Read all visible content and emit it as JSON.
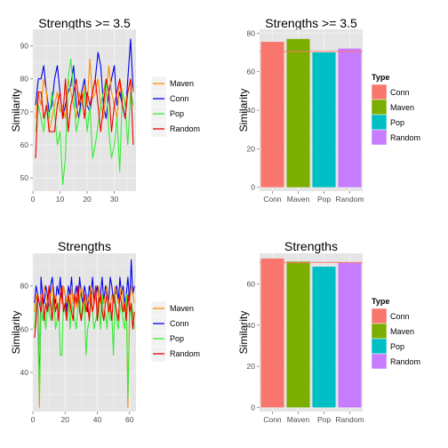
{
  "chart_data": [
    {
      "type": "line",
      "title": "Strengths >= 3.5",
      "ylabel": "Similarity",
      "xlabel": "",
      "xlim": [
        0,
        38
      ],
      "ylim": [
        46,
        95
      ],
      "xticks": [
        0,
        10,
        20,
        30
      ],
      "yticks": [
        50,
        60,
        70,
        80,
        90
      ],
      "grid": true,
      "legend": "right",
      "legend_order": [
        "Maven",
        "Conn",
        "Pop",
        "Random"
      ],
      "series": [
        {
          "name": "Conn",
          "color": "#0000ee",
          "x": [
            1,
            2,
            3,
            4,
            5,
            6,
            7,
            8,
            9,
            10,
            11,
            12,
            13,
            14,
            15,
            16,
            17,
            18,
            19,
            20,
            21,
            22,
            23,
            24,
            25,
            26,
            27,
            28,
            29,
            30,
            31,
            32,
            33,
            34,
            35,
            36,
            37
          ],
          "values": [
            72,
            80,
            80,
            84,
            76,
            70,
            72,
            80,
            84,
            76,
            68,
            72,
            76,
            78,
            84,
            72,
            68,
            76,
            80,
            72,
            70,
            76,
            80,
            88,
            84,
            72,
            68,
            76,
            80,
            84,
            72,
            76,
            72,
            68,
            80,
            92,
            76
          ]
        },
        {
          "name": "Maven",
          "color": "#ff8c00",
          "x": [
            1,
            2,
            3,
            4,
            5,
            6,
            7,
            8,
            9,
            10,
            11,
            12,
            13,
            14,
            15,
            16,
            17,
            18,
            19,
            20,
            21,
            22,
            23,
            24,
            25,
            26,
            27,
            28,
            29,
            30,
            31,
            32,
            33,
            34,
            35,
            36,
            37
          ],
          "values": [
            68,
            76,
            72,
            80,
            76,
            64,
            68,
            72,
            76,
            70,
            72,
            68,
            80,
            76,
            72,
            68,
            76,
            72,
            78,
            72,
            86,
            74,
            76,
            80,
            72,
            68,
            76,
            84,
            76,
            72,
            68,
            80,
            76,
            72,
            76,
            80,
            76
          ]
        },
        {
          "name": "Pop",
          "color": "#33ee33",
          "x": [
            1,
            2,
            3,
            4,
            5,
            6,
            7,
            8,
            9,
            10,
            11,
            12,
            13,
            14,
            15,
            16,
            17,
            18,
            19,
            20,
            21,
            22,
            23,
            24,
            25,
            26,
            27,
            28,
            29,
            30,
            31,
            32,
            33,
            34,
            35,
            36,
            37
          ],
          "values": [
            64,
            72,
            68,
            64,
            72,
            68,
            76,
            70,
            60,
            64,
            48,
            56,
            80,
            86,
            76,
            64,
            68,
            72,
            76,
            64,
            72,
            56,
            60,
            66,
            72,
            76,
            80,
            64,
            56,
            60,
            68,
            52,
            76,
            72,
            60,
            76,
            72
          ]
        },
        {
          "name": "Random",
          "color": "#ee0000",
          "x": [
            1,
            2,
            3,
            4,
            5,
            6,
            7,
            8,
            9,
            10,
            11,
            12,
            13,
            14,
            15,
            16,
            17,
            18,
            19,
            20,
            21,
            22,
            23,
            24,
            25,
            26,
            27,
            28,
            29,
            30,
            31,
            32,
            33,
            34,
            35,
            36,
            37
          ],
          "values": [
            56,
            76,
            76,
            68,
            72,
            64,
            64,
            64,
            72,
            76,
            68,
            80,
            64,
            72,
            76,
            80,
            72,
            76,
            68,
            76,
            72,
            76,
            80,
            72,
            64,
            72,
            80,
            76,
            64,
            72,
            76,
            80,
            72,
            68,
            76,
            80,
            60
          ]
        }
      ]
    },
    {
      "type": "bar",
      "title": "Strengths >= 3.5",
      "ylabel": "Similarity",
      "xlabel": "",
      "categories": [
        "Conn",
        "Maven",
        "Pop",
        "Random"
      ],
      "values": [
        75.5,
        77,
        70,
        72
      ],
      "colors": [
        "#f8766d",
        "#7cae00",
        "#00bfc4",
        "#c77cff"
      ],
      "reference_line": 70.5,
      "reference_color": "#f8766d",
      "ylim": [
        -2,
        82
      ],
      "yticks": [
        0,
        20,
        40,
        60,
        80
      ],
      "grid": true,
      "legend": "right",
      "legend_title": "Type"
    },
    {
      "type": "line",
      "title": "Strengths",
      "ylabel": "Similarity",
      "xlabel": "",
      "xlim": [
        0,
        64
      ],
      "ylim": [
        22,
        95
      ],
      "xticks": [
        0,
        20,
        40,
        60
      ],
      "yticks": [
        40,
        60,
        80
      ],
      "grid": true,
      "legend": "right",
      "legend_order": [
        "Maven",
        "Conn",
        "Pop",
        "Random"
      ],
      "series": [
        {
          "name": "Conn",
          "color": "#0000ee",
          "x": [
            1,
            2,
            3,
            4,
            5,
            6,
            7,
            8,
            9,
            10,
            11,
            12,
            13,
            14,
            15,
            16,
            17,
            18,
            19,
            20,
            21,
            22,
            23,
            24,
            25,
            26,
            27,
            28,
            29,
            30,
            31,
            32,
            33,
            34,
            35,
            36,
            37,
            38,
            39,
            40,
            41,
            42,
            43,
            44,
            45,
            46,
            47,
            48,
            49,
            50,
            51,
            52,
            53,
            54,
            55,
            56,
            57,
            58,
            59,
            60,
            61,
            62,
            63
          ],
          "values": [
            72,
            80,
            76,
            30,
            84,
            76,
            72,
            80,
            76,
            68,
            80,
            84,
            76,
            72,
            80,
            76,
            84,
            72,
            80,
            76,
            68,
            80,
            76,
            84,
            72,
            76,
            80,
            72,
            84,
            76,
            72,
            80,
            76,
            68,
            80,
            76,
            84,
            72,
            76,
            80,
            72,
            76,
            84,
            72,
            80,
            76,
            72,
            84,
            80,
            72,
            76,
            80,
            72,
            84,
            76,
            80,
            72,
            76,
            84,
            72,
            92,
            76,
            80
          ]
        },
        {
          "name": "Maven",
          "color": "#ff8c00",
          "x": [
            1,
            2,
            3,
            4,
            5,
            6,
            7,
            8,
            9,
            10,
            11,
            12,
            13,
            14,
            15,
            16,
            17,
            18,
            19,
            20,
            21,
            22,
            23,
            24,
            25,
            26,
            27,
            28,
            29,
            30,
            31,
            32,
            33,
            34,
            35,
            36,
            37,
            38,
            39,
            40,
            41,
            42,
            43,
            44,
            45,
            46,
            47,
            48,
            49,
            50,
            51,
            52,
            53,
            54,
            55,
            56,
            57,
            58,
            59,
            60,
            61,
            62,
            63
          ],
          "values": [
            68,
            76,
            72,
            24,
            76,
            72,
            80,
            76,
            72,
            68,
            76,
            80,
            72,
            76,
            72,
            68,
            76,
            72,
            80,
            76,
            72,
            76,
            68,
            80,
            72,
            76,
            70,
            76,
            72,
            80,
            76,
            72,
            68,
            76,
            72,
            80,
            76,
            72,
            76,
            68,
            80,
            72,
            76,
            72,
            76,
            80,
            72,
            68,
            76,
            72,
            80,
            76,
            72,
            76,
            80,
            72,
            68,
            76,
            24,
            72,
            80,
            76,
            72
          ]
        },
        {
          "name": "Pop",
          "color": "#33ee33",
          "x": [
            1,
            2,
            3,
            4,
            5,
            6,
            7,
            8,
            9,
            10,
            11,
            12,
            13,
            14,
            15,
            16,
            17,
            18,
            19,
            20,
            21,
            22,
            23,
            24,
            25,
            26,
            27,
            28,
            29,
            30,
            31,
            32,
            33,
            34,
            35,
            36,
            37,
            38,
            39,
            40,
            41,
            42,
            43,
            44,
            45,
            46,
            47,
            48,
            49,
            50,
            51,
            52,
            53,
            54,
            55,
            56,
            57,
            58,
            59,
            60,
            61,
            62,
            63
          ],
          "values": [
            60,
            72,
            68,
            28,
            72,
            64,
            68,
            60,
            72,
            68,
            64,
            72,
            76,
            60,
            64,
            72,
            48,
            48,
            72,
            68,
            64,
            76,
            60,
            72,
            68,
            64,
            60,
            72,
            76,
            64,
            68,
            72,
            48,
            60,
            64,
            72,
            68,
            60,
            64,
            68,
            72,
            60,
            76,
            64,
            68,
            60,
            72,
            64,
            68,
            48,
            76,
            64,
            60,
            68,
            72,
            64,
            60,
            76,
            28,
            64,
            72,
            68,
            60
          ]
        },
        {
          "name": "Random",
          "color": "#ee0000",
          "x": [
            1,
            2,
            3,
            4,
            5,
            6,
            7,
            8,
            9,
            10,
            11,
            12,
            13,
            14,
            15,
            16,
            17,
            18,
            19,
            20,
            21,
            22,
            23,
            24,
            25,
            26,
            27,
            28,
            29,
            30,
            31,
            32,
            33,
            34,
            35,
            36,
            37,
            38,
            39,
            40,
            41,
            42,
            43,
            44,
            45,
            46,
            47,
            48,
            49,
            50,
            51,
            52,
            53,
            54,
            55,
            56,
            57,
            58,
            59,
            60,
            61,
            62,
            63
          ],
          "values": [
            56,
            64,
            76,
            72,
            68,
            76,
            64,
            72,
            68,
            80,
            72,
            64,
            76,
            68,
            72,
            64,
            76,
            80,
            68,
            72,
            64,
            76,
            72,
            68,
            64,
            76,
            72,
            80,
            68,
            64,
            72,
            76,
            68,
            72,
            64,
            76,
            68,
            72,
            80,
            64,
            72,
            76,
            68,
            64,
            72,
            76,
            68,
            72,
            64,
            76,
            72,
            68,
            64,
            76,
            72,
            68,
            72,
            64,
            76,
            68,
            72,
            60,
            68
          ]
        }
      ]
    },
    {
      "type": "bar",
      "title": "Strengths",
      "ylabel": "Similarity",
      "xlabel": "",
      "categories": [
        "Conn",
        "Maven",
        "Pop",
        "Random"
      ],
      "values": [
        72.5,
        71,
        68.5,
        70.5
      ],
      "colors": [
        "#f8766d",
        "#7cae00",
        "#00bfc4",
        "#c77cff"
      ],
      "reference_line": 70.5,
      "reference_color": "#f8766d",
      "ylim": [
        -2,
        75
      ],
      "yticks": [
        0,
        20,
        40,
        60
      ],
      "grid": true,
      "legend": "right",
      "legend_title": "Type"
    }
  ]
}
